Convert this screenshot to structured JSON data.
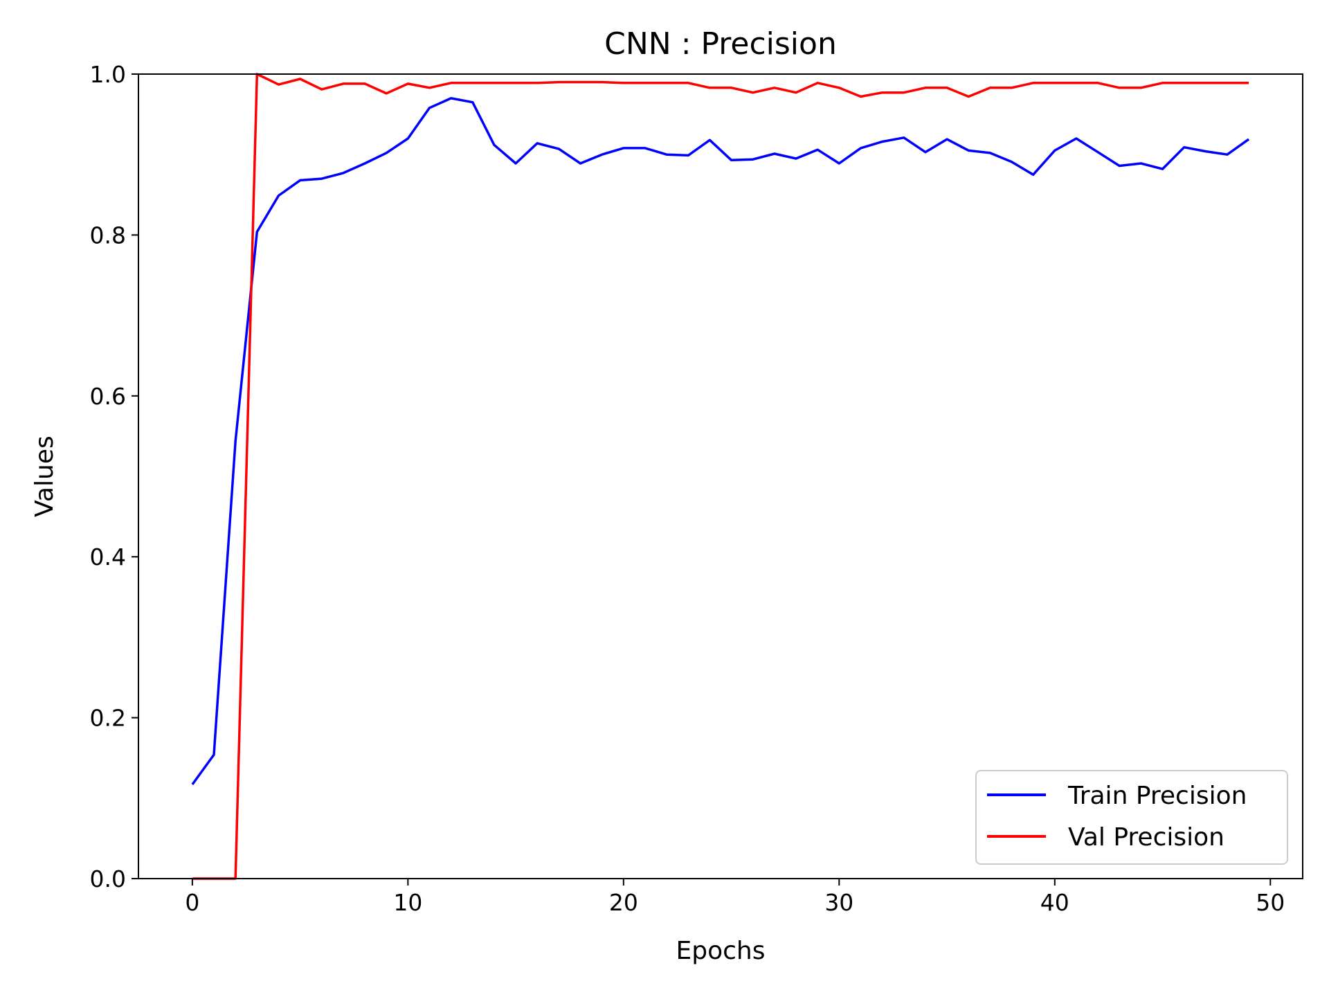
{
  "chart_data": {
    "type": "line",
    "title": "CNN : Precision",
    "xlabel": "Epochs",
    "ylabel": "Values",
    "xlim": [
      -2.5,
      51.5
    ],
    "ylim": [
      0.0,
      1.0
    ],
    "xticks": [
      0,
      10,
      20,
      30,
      40,
      50
    ],
    "xtick_labels": [
      "0",
      "10",
      "20",
      "30",
      "40",
      "50"
    ],
    "yticks": [
      0.0,
      0.2,
      0.4,
      0.6,
      0.8,
      1.0
    ],
    "ytick_labels": [
      "0.0",
      "0.2",
      "0.4",
      "0.6",
      "0.8",
      "1.0"
    ],
    "grid": false,
    "legend_position": "lower-right",
    "x": [
      0,
      1,
      2,
      3,
      4,
      5,
      6,
      7,
      8,
      9,
      10,
      11,
      12,
      13,
      14,
      15,
      16,
      17,
      18,
      19,
      20,
      21,
      22,
      23,
      24,
      25,
      26,
      27,
      28,
      29,
      30,
      31,
      32,
      33,
      34,
      35,
      36,
      37,
      38,
      39,
      40,
      41,
      42,
      43,
      44,
      45,
      46,
      47,
      48,
      49
    ],
    "series": [
      {
        "name": "Train Precision",
        "color": "#0000ff",
        "values": [
          0.117,
          0.154,
          0.544,
          0.804,
          0.849,
          0.868,
          0.87,
          0.877,
          0.889,
          0.902,
          0.92,
          0.958,
          0.97,
          0.965,
          0.912,
          0.889,
          0.914,
          0.907,
          0.889,
          0.9,
          0.908,
          0.908,
          0.9,
          0.899,
          0.918,
          0.893,
          0.894,
          0.901,
          0.895,
          0.906,
          0.889,
          0.908,
          0.916,
          0.921,
          0.903,
          0.919,
          0.905,
          0.902,
          0.891,
          0.875,
          0.905,
          0.92,
          0.903,
          0.886,
          0.889,
          0.882,
          0.909,
          0.904,
          0.9,
          0.919
        ]
      },
      {
        "name": "Val Precision",
        "color": "#ff0000",
        "values": [
          0.0,
          0.0,
          0.0,
          1.0,
          0.987,
          0.994,
          0.981,
          0.988,
          0.988,
          0.976,
          0.988,
          0.983,
          0.989,
          0.989,
          0.989,
          0.989,
          0.989,
          0.99,
          0.99,
          0.99,
          0.989,
          0.989,
          0.989,
          0.989,
          0.983,
          0.983,
          0.977,
          0.983,
          0.977,
          0.989,
          0.983,
          0.972,
          0.977,
          0.977,
          0.983,
          0.983,
          0.972,
          0.983,
          0.983,
          0.989,
          0.989,
          0.989,
          0.989,
          0.983,
          0.983,
          0.989,
          0.989,
          0.989,
          0.989,
          0.989
        ]
      }
    ]
  }
}
